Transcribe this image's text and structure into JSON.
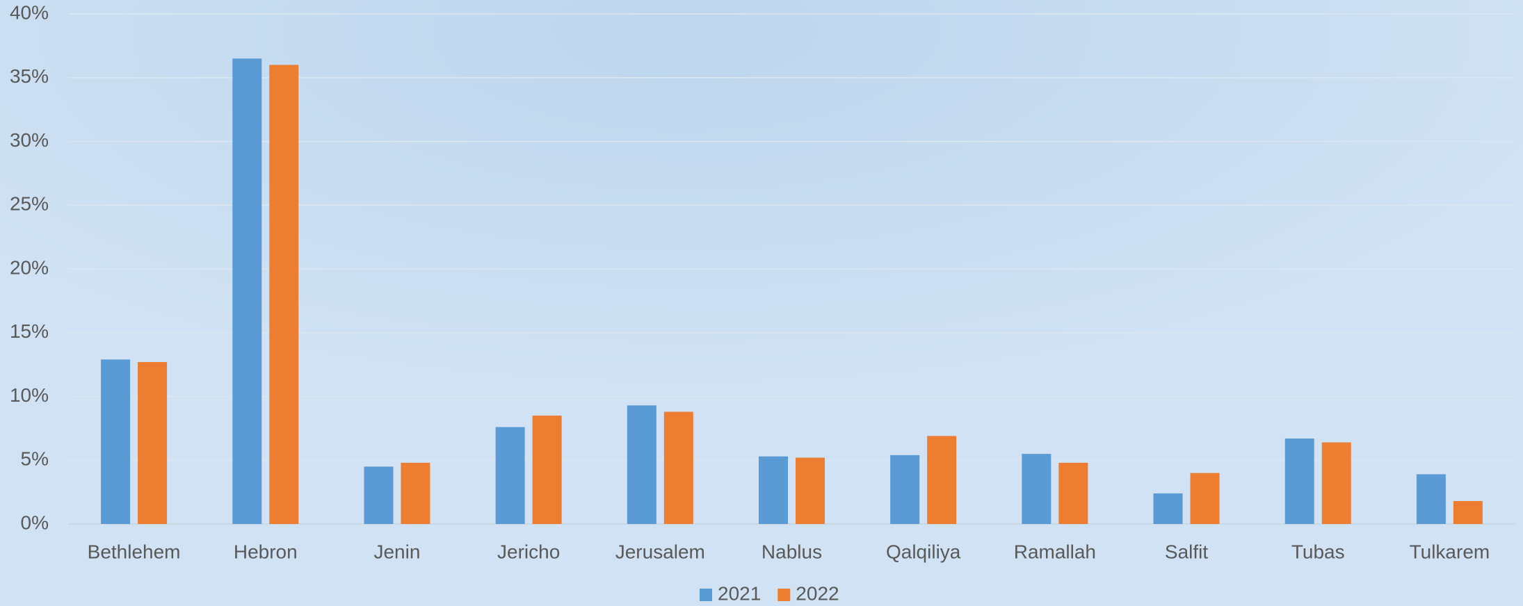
{
  "chart_data": {
    "type": "bar",
    "categories": [
      "Bethlehem",
      "Hebron",
      "Jenin",
      "Jericho",
      "Jerusalem",
      "Nablus",
      "Qalqiliya",
      "Ramallah",
      "Salfit",
      "Tubas",
      "Tulkarem"
    ],
    "series": [
      {
        "name": "2021",
        "color": "#5b9bd5",
        "values": [
          12.9,
          36.5,
          4.5,
          7.6,
          9.3,
          5.3,
          5.4,
          5.5,
          2.4,
          6.7,
          3.9
        ]
      },
      {
        "name": "2022",
        "color": "#ed7d31",
        "values": [
          12.7,
          36.0,
          4.8,
          8.5,
          8.8,
          5.2,
          6.9,
          4.8,
          4.0,
          6.4,
          1.8
        ]
      }
    ],
    "ylim": [
      0,
      40
    ],
    "yticks": [
      {
        "value": 0,
        "label": "0%"
      },
      {
        "value": 5,
        "label": "5%"
      },
      {
        "value": 10,
        "label": "10%"
      },
      {
        "value": 15,
        "label": "15%"
      },
      {
        "value": 20,
        "label": "20%"
      },
      {
        "value": 25,
        "label": "25%"
      },
      {
        "value": 30,
        "label": "30%"
      },
      {
        "value": 35,
        "label": "35%"
      },
      {
        "value": 40,
        "label": "40%"
      }
    ],
    "grid": true,
    "legend": "bottom"
  }
}
